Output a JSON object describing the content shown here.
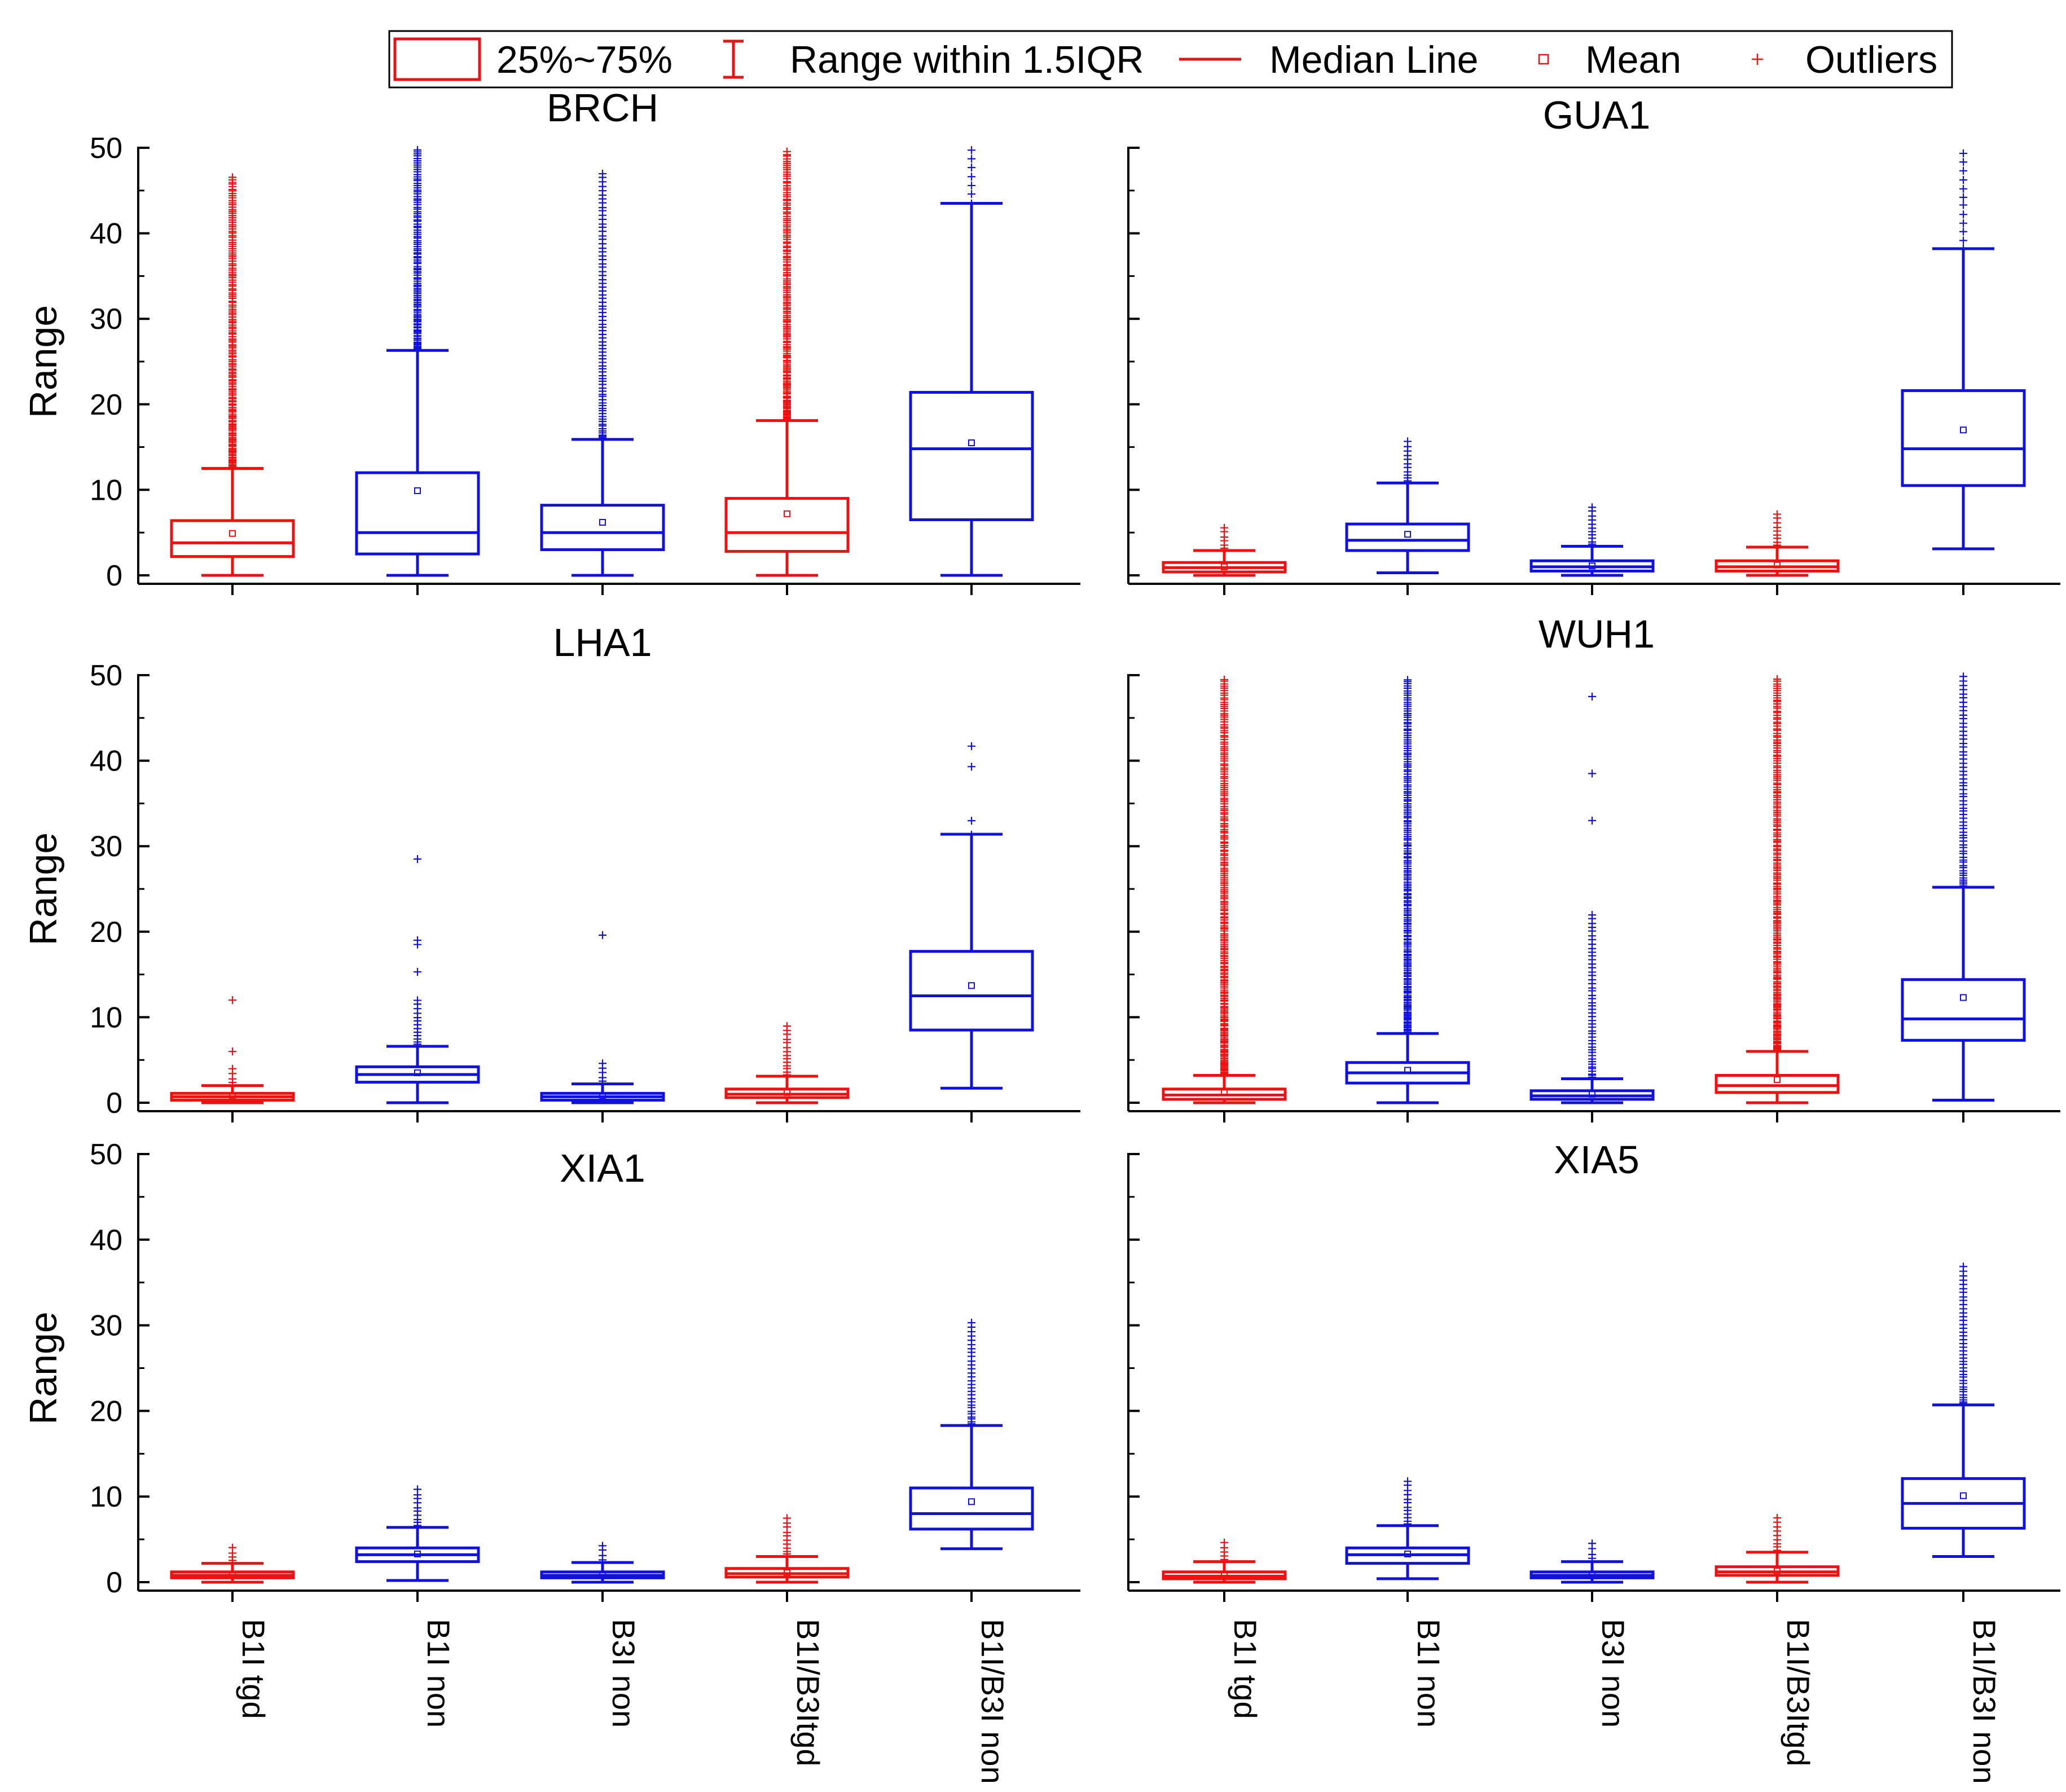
{
  "legend": {
    "items": [
      {
        "key": "box",
        "label": "25%~75%"
      },
      {
        "key": "whisker",
        "label": "Range within 1.5IQR"
      },
      {
        "key": "median",
        "label": "Median Line"
      },
      {
        "key": "mean",
        "label": "Mean"
      },
      {
        "key": "outliers",
        "label": "Outliers"
      }
    ],
    "color": "#ee1111"
  },
  "colors": {
    "red": "#ee1111",
    "blue": "#1111dd",
    "axis": "#000000"
  },
  "chart_data": {
    "type": "box",
    "ylabel": "Range",
    "ylim": [
      0,
      50
    ],
    "yticks": [
      0,
      10,
      20,
      30,
      40,
      50
    ],
    "categories": [
      "B1I tgd",
      "B1I non",
      "B3I non",
      "B1I/B3Itgd",
      "B1I/B3I non"
    ],
    "category_colors": [
      "red",
      "blue",
      "blue",
      "red",
      "blue"
    ],
    "panels": [
      {
        "title": "BRCH",
        "boxes": [
          {
            "min": 0,
            "q1": 2.2,
            "median": 3.8,
            "q3": 6.4,
            "max": 12.5,
            "mean": 4.9,
            "outlier_range": [
              12.5,
              46.5
            ],
            "outlier_density": 3
          },
          {
            "min": 0,
            "q1": 2.5,
            "median": 5.0,
            "q3": 12.0,
            "max": 26.3,
            "mean": 9.9,
            "outlier_range": [
              26.3,
              49.8
            ],
            "outlier_density": 3
          },
          {
            "min": 0,
            "q1": 3.0,
            "median": 5.0,
            "q3": 8.2,
            "max": 15.9,
            "mean": 6.2,
            "outlier_range": [
              15.9,
              47.0
            ],
            "outlier_density": 2
          },
          {
            "min": 0,
            "q1": 2.8,
            "median": 5.0,
            "q3": 9.0,
            "max": 18.1,
            "mean": 7.2,
            "outlier_range": [
              18.1,
              49.5
            ],
            "outlier_density": 3
          },
          {
            "min": 0,
            "q1": 6.5,
            "median": 14.8,
            "q3": 21.4,
            "max": 43.5,
            "mean": 15.5,
            "outlier_range": [
              43.5,
              49.7
            ],
            "outlier_density": 1
          }
        ]
      },
      {
        "title": "GUA1",
        "boxes": [
          {
            "min": 0,
            "q1": 0.4,
            "median": 0.9,
            "q3": 1.5,
            "max": 2.9,
            "mean": 1.0,
            "outlier_range": [
              2.9,
              5.6
            ],
            "outlier_density": 2
          },
          {
            "min": 0.3,
            "q1": 2.9,
            "median": 4.1,
            "q3": 6.0,
            "max": 10.8,
            "mean": 4.8,
            "outlier_range": [
              10.8,
              15.6
            ],
            "outlier_density": 2
          },
          {
            "min": 0,
            "q1": 0.5,
            "median": 1.0,
            "q3": 1.7,
            "max": 3.4,
            "mean": 1.1,
            "outlier_range": [
              3.4,
              8.0
            ],
            "outlier_density": 2
          },
          {
            "min": 0,
            "q1": 0.5,
            "median": 1.0,
            "q3": 1.7,
            "max": 3.3,
            "mean": 1.2,
            "outlier_range": [
              3.3,
              7.2
            ],
            "outlier_density": 2
          },
          {
            "min": 3.1,
            "q1": 10.5,
            "median": 14.8,
            "q3": 21.6,
            "max": 38.2,
            "mean": 17.0,
            "outlier_range": [
              38.2,
              49.3
            ],
            "outlier_density": 1
          }
        ]
      },
      {
        "title": "LHA1",
        "boxes": [
          {
            "min": 0,
            "q1": 0.3,
            "median": 0.7,
            "q3": 1.1,
            "max": 2.0,
            "mean": 0.8,
            "outlier_range": [
              2.0,
              4.0
            ],
            "outlier_density": 2,
            "extra_outliers": [
              6.0,
              12.0
            ]
          },
          {
            "min": 0,
            "q1": 2.4,
            "median": 3.3,
            "q3": 4.2,
            "max": 6.6,
            "mean": 3.5,
            "outlier_range": [
              6.6,
              12.0
            ],
            "outlier_density": 2,
            "extra_outliers": [
              15.3,
              18.5,
              19.0,
              28.5
            ]
          },
          {
            "min": 0,
            "q1": 0.3,
            "median": 0.7,
            "q3": 1.1,
            "max": 2.2,
            "mean": 0.8,
            "outlier_range": [
              2.2,
              4.6
            ],
            "outlier_density": 2,
            "extra_outliers": [
              19.6
            ]
          },
          {
            "min": 0,
            "q1": 0.6,
            "median": 1.0,
            "q3": 1.6,
            "max": 3.1,
            "mean": 1.2,
            "outlier_range": [
              3.1,
              9.0
            ],
            "outlier_density": 2
          },
          {
            "min": 1.7,
            "q1": 8.5,
            "median": 12.5,
            "q3": 17.7,
            "max": 31.4,
            "mean": 13.7,
            "outlier_range": [
              31.4,
              33.0
            ],
            "outlier_density": 1,
            "extra_outliers": [
              39.3,
              41.7
            ]
          }
        ]
      },
      {
        "title": "WUH1",
        "boxes": [
          {
            "min": 0,
            "q1": 0.4,
            "median": 0.9,
            "q3": 1.6,
            "max": 3.2,
            "mean": 1.2,
            "outlier_range": [
              3.2,
              49.5
            ],
            "outlier_density": 3
          },
          {
            "min": 0,
            "q1": 2.3,
            "median": 3.5,
            "q3": 4.7,
            "max": 8.1,
            "mean": 3.8,
            "outlier_range": [
              8.1,
              49.5
            ],
            "outlier_density": 3
          },
          {
            "min": 0,
            "q1": 0.4,
            "median": 0.8,
            "q3": 1.4,
            "max": 2.8,
            "mean": 1.0,
            "outlier_range": [
              2.8,
              22.0
            ],
            "outlier_density": 2,
            "extra_outliers": [
              33.0,
              38.5,
              47.5
            ]
          },
          {
            "min": 0,
            "q1": 1.2,
            "median": 2.0,
            "q3": 3.2,
            "max": 6.0,
            "mean": 2.7,
            "outlier_range": [
              6.0,
              49.5
            ],
            "outlier_density": 3
          },
          {
            "min": 0.3,
            "q1": 7.3,
            "median": 9.8,
            "q3": 14.4,
            "max": 25.2,
            "mean": 12.3,
            "outlier_range": [
              25.2,
              49.8
            ],
            "outlier_density": 2
          }
        ]
      },
      {
        "title": "XIA1",
        "boxes": [
          {
            "min": 0,
            "q1": 0.5,
            "median": 0.8,
            "q3": 1.2,
            "max": 2.2,
            "mean": 0.9,
            "outlier_range": [
              2.2,
              4.0
            ],
            "outlier_density": 2
          },
          {
            "min": 0.2,
            "q1": 2.4,
            "median": 3.2,
            "q3": 4.0,
            "max": 6.4,
            "mean": 3.3,
            "outlier_range": [
              6.4,
              10.8
            ],
            "outlier_density": 2
          },
          {
            "min": 0,
            "q1": 0.5,
            "median": 0.8,
            "q3": 1.2,
            "max": 2.3,
            "mean": 0.9,
            "outlier_range": [
              2.3,
              4.3
            ],
            "outlier_density": 2
          },
          {
            "min": 0,
            "q1": 0.6,
            "median": 1.0,
            "q3": 1.6,
            "max": 3.0,
            "mean": 1.1,
            "outlier_range": [
              3.0,
              7.5
            ],
            "outlier_density": 2
          },
          {
            "min": 3.9,
            "q1": 6.2,
            "median": 8.0,
            "q3": 11.0,
            "max": 18.3,
            "mean": 9.4,
            "outlier_range": [
              18.3,
              30.3
            ],
            "outlier_density": 2
          }
        ]
      },
      {
        "title": "XIA5",
        "boxes": [
          {
            "min": 0,
            "q1": 0.4,
            "median": 0.7,
            "q3": 1.2,
            "max": 2.4,
            "mean": 0.8,
            "outlier_range": [
              2.4,
              4.6
            ],
            "outlier_density": 2
          },
          {
            "min": 0.4,
            "q1": 2.2,
            "median": 3.2,
            "q3": 4.0,
            "max": 6.6,
            "mean": 3.3,
            "outlier_range": [
              6.6,
              11.8
            ],
            "outlier_density": 2
          },
          {
            "min": 0,
            "q1": 0.5,
            "median": 0.8,
            "q3": 1.2,
            "max": 2.4,
            "mean": 0.9,
            "outlier_range": [
              2.4,
              4.5
            ],
            "outlier_density": 2
          },
          {
            "min": 0,
            "q1": 0.8,
            "median": 1.2,
            "q3": 1.8,
            "max": 3.5,
            "mean": 1.3,
            "outlier_range": [
              3.5,
              7.5
            ],
            "outlier_density": 2
          },
          {
            "min": 3.0,
            "q1": 6.3,
            "median": 9.2,
            "q3": 12.1,
            "max": 20.7,
            "mean": 10.1,
            "outlier_range": [
              20.7,
              36.8
            ],
            "outlier_density": 2
          }
        ]
      }
    ]
  }
}
